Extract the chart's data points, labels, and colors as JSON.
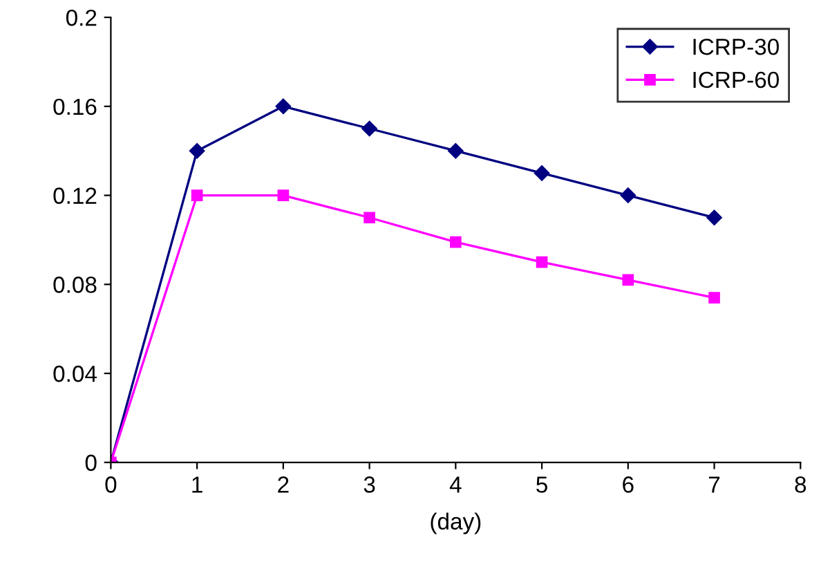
{
  "chart_data": {
    "type": "line",
    "xlabel": "(day)",
    "x": [
      0,
      1,
      2,
      3,
      4,
      5,
      6,
      7
    ],
    "series": [
      {
        "name": "ICRP-30",
        "color": "#000080",
        "marker": "diamond",
        "values": [
          0,
          0.14,
          0.16,
          0.15,
          0.14,
          0.13,
          0.12,
          0.11
        ]
      },
      {
        "name": "ICRP-60",
        "color": "#ff00ff",
        "marker": "square",
        "values": [
          0,
          0.12,
          0.12,
          0.11,
          0.099,
          0.09,
          0.082,
          0.074
        ]
      }
    ],
    "xlim": [
      0,
      8
    ],
    "xticks": [
      0,
      1,
      2,
      3,
      4,
      5,
      6,
      7,
      8
    ],
    "ylim": [
      0,
      0.2
    ],
    "yticks": [
      0,
      0.04,
      0.08,
      0.12,
      0.16,
      0.2
    ],
    "grid": false,
    "legend": "top right",
    "line_style": "solid"
  }
}
